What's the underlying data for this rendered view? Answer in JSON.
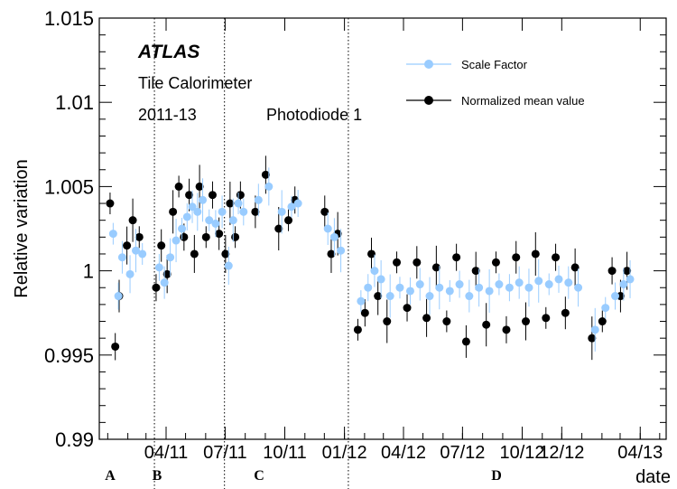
{
  "chart_data": {
    "type": "scatter",
    "ylabel": "Relative variation",
    "xlabel": "date",
    "ylim": [
      0.99,
      1.015
    ],
    "y_ticks": [
      "0.99",
      "0.995",
      "1",
      "1.005",
      "1.01",
      "1.015"
    ],
    "x_ticks": [
      "04/11",
      "07/11",
      "10/11",
      "01/12",
      "04/12",
      "07/12",
      "10/12",
      "12/12",
      "04/13"
    ],
    "period_labels": [
      "A",
      "B",
      "C",
      "D"
    ],
    "annotations": {
      "experiment": "ATLAS",
      "detector": "Tile Calorimeter",
      "years": "2011-13",
      "photodiode": "Photodiode 1"
    },
    "legend_position": "top-right",
    "series": [
      {
        "name": "Scale Factor",
        "color": "#99ccff",
        "points": [
          [
            "2011-01-08",
            1.0022
          ],
          [
            "2011-01-16",
            0.9985
          ],
          [
            "2011-01-22",
            1.0008
          ],
          [
            "2011-02-03",
            0.9998
          ],
          [
            "2011-02-12",
            1.0012
          ],
          [
            "2011-02-22",
            1.001
          ],
          [
            "2011-03-20",
            1.0002
          ],
          [
            "2011-03-28",
            0.9993
          ],
          [
            "2011-04-06",
            1.0008
          ],
          [
            "2011-04-15",
            1.0018
          ],
          [
            "2011-04-24",
            1.0025
          ],
          [
            "2011-05-02",
            1.0032
          ],
          [
            "2011-05-10",
            1.0038
          ],
          [
            "2011-05-18",
            1.0035
          ],
          [
            "2011-05-26",
            1.0042
          ],
          [
            "2011-06-05",
            1.003
          ],
          [
            "2011-06-15",
            1.0028
          ],
          [
            "2011-06-25",
            1.0035
          ],
          [
            "2011-07-05",
            1.0003
          ],
          [
            "2011-07-12",
            1.003
          ],
          [
            "2011-07-20",
            1.004
          ],
          [
            "2011-07-28",
            1.0035
          ],
          [
            "2011-08-20",
            1.0042
          ],
          [
            "2011-09-05",
            1.005
          ],
          [
            "2011-09-25",
            1.0035
          ],
          [
            "2011-10-10",
            1.0038
          ],
          [
            "2011-10-20",
            1.004
          ],
          [
            "2011-12-05",
            1.0025
          ],
          [
            "2011-12-15",
            1.002
          ],
          [
            "2011-12-25",
            1.0012
          ],
          [
            "2012-01-25",
            0.9982
          ],
          [
            "2012-02-05",
            0.999
          ],
          [
            "2012-02-15",
            1.0
          ],
          [
            "2012-02-25",
            0.9995
          ],
          [
            "2012-03-10",
            0.9985
          ],
          [
            "2012-03-25",
            0.999
          ],
          [
            "2012-04-10",
            0.9988
          ],
          [
            "2012-04-25",
            0.9992
          ],
          [
            "2012-05-10",
            0.9985
          ],
          [
            "2012-05-25",
            0.999
          ],
          [
            "2012-06-10",
            0.9988
          ],
          [
            "2012-06-25",
            0.9992
          ],
          [
            "2012-07-10",
            0.9985
          ],
          [
            "2012-07-25",
            0.999
          ],
          [
            "2012-08-10",
            0.9988
          ],
          [
            "2012-08-25",
            0.9992
          ],
          [
            "2012-09-10",
            0.999
          ],
          [
            "2012-09-25",
            0.9993
          ],
          [
            "2012-10-10",
            0.999
          ],
          [
            "2012-10-25",
            0.9994
          ],
          [
            "2012-11-10",
            0.9992
          ],
          [
            "2012-11-25",
            0.9995
          ],
          [
            "2012-12-10",
            0.9993
          ],
          [
            "2012-12-25",
            0.999
          ],
          [
            "2013-01-20",
            0.9965
          ],
          [
            "2013-02-05",
            0.9978
          ],
          [
            "2013-02-20",
            0.9985
          ],
          [
            "2013-03-05",
            0.9992
          ],
          [
            "2013-03-15",
            0.9995
          ]
        ]
      },
      {
        "name": "Normalized mean value",
        "color": "#000000",
        "points": [
          [
            "2011-01-06",
            1.004
          ],
          [
            "2011-01-14",
            0.9955
          ],
          [
            "2011-01-20",
            0.9985
          ],
          [
            "2011-02-01",
            1.0015
          ],
          [
            "2011-02-10",
            1.003
          ],
          [
            "2011-02-20",
            1.002
          ],
          [
            "2011-03-18",
            0.999
          ],
          [
            "2011-03-26",
            1.0015
          ],
          [
            "2011-04-04",
            0.9998
          ],
          [
            "2011-04-13",
            1.0035
          ],
          [
            "2011-04-22",
            1.005
          ],
          [
            "2011-04-30",
            1.002
          ],
          [
            "2011-05-08",
            1.0045
          ],
          [
            "2011-05-16",
            1.001
          ],
          [
            "2011-05-24",
            1.005
          ],
          [
            "2011-06-03",
            1.002
          ],
          [
            "2011-06-13",
            1.0045
          ],
          [
            "2011-06-23",
            1.0022
          ],
          [
            "2011-07-03",
            1.001
          ],
          [
            "2011-07-10",
            1.004
          ],
          [
            "2011-07-18",
            1.002
          ],
          [
            "2011-07-26",
            1.0045
          ],
          [
            "2011-08-18",
            1.0035
          ],
          [
            "2011-09-03",
            1.0057
          ],
          [
            "2011-09-23",
            1.0025
          ],
          [
            "2011-10-08",
            1.003
          ],
          [
            "2011-10-18",
            1.0042
          ],
          [
            "2011-12-03",
            1.0035
          ],
          [
            "2011-12-13",
            1.001
          ],
          [
            "2011-12-23",
            1.0022
          ],
          [
            "2012-01-23",
            0.9965
          ],
          [
            "2012-02-03",
            0.9975
          ],
          [
            "2012-02-13",
            1.001
          ],
          [
            "2012-02-23",
            0.9985
          ],
          [
            "2012-03-08",
            0.997
          ],
          [
            "2012-03-23",
            1.0005
          ],
          [
            "2012-04-08",
            0.9978
          ],
          [
            "2012-04-23",
            1.0005
          ],
          [
            "2012-05-08",
            0.9972
          ],
          [
            "2012-05-23",
            1.0002
          ],
          [
            "2012-06-08",
            0.997
          ],
          [
            "2012-06-23",
            1.0008
          ],
          [
            "2012-07-08",
            0.9958
          ],
          [
            "2012-07-23",
            1.0
          ],
          [
            "2012-08-08",
            0.9968
          ],
          [
            "2012-08-23",
            1.0005
          ],
          [
            "2012-09-08",
            0.9965
          ],
          [
            "2012-09-23",
            1.0008
          ],
          [
            "2012-10-08",
            0.997
          ],
          [
            "2012-10-23",
            1.001
          ],
          [
            "2012-11-08",
            0.9972
          ],
          [
            "2012-11-23",
            1.0008
          ],
          [
            "2012-12-08",
            0.9975
          ],
          [
            "2012-12-23",
            1.0002
          ],
          [
            "2013-01-18",
            0.996
          ],
          [
            "2013-02-03",
            0.997
          ],
          [
            "2013-02-18",
            1.0
          ],
          [
            "2013-03-03",
            0.9985
          ],
          [
            "2013-03-13",
            1.0
          ]
        ]
      }
    ]
  }
}
